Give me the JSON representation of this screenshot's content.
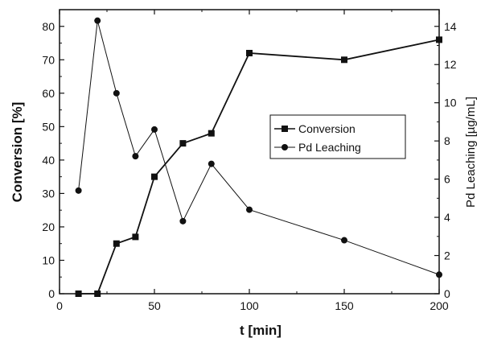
{
  "chart_data": {
    "type": "line",
    "xlabel": "t [min]",
    "ylabel_left": "Conversion [%]",
    "ylabel_right": "Pd Leaching [µg/mL]",
    "xlim": [
      0,
      200
    ],
    "ylim_left": [
      0,
      85
    ],
    "ylim_right": [
      0,
      14.875
    ],
    "x_ticks": [
      0,
      50,
      100,
      150,
      200
    ],
    "y_left_ticks": [
      0,
      10,
      20,
      30,
      40,
      50,
      60,
      70,
      80
    ],
    "y_right_ticks": [
      0,
      2,
      4,
      6,
      8,
      10,
      12,
      14
    ],
    "grid": false,
    "legend_position": "center-right",
    "series": [
      {
        "name": "Conversion",
        "axis": "left",
        "marker": "square",
        "x": [
          10,
          20,
          30,
          40,
          50,
          65,
          80,
          100,
          150,
          200
        ],
        "y": [
          0,
          0,
          15,
          17,
          35,
          45,
          48,
          72,
          70,
          76
        ]
      },
      {
        "name": "Pd Leaching",
        "axis": "right",
        "marker": "circle",
        "x": [
          10,
          20,
          30,
          40,
          50,
          65,
          80,
          100,
          150,
          200
        ],
        "y": [
          5.4,
          14.3,
          10.5,
          7.2,
          8.6,
          3.8,
          6.8,
          4.4,
          2.8,
          1.0
        ]
      }
    ]
  },
  "colors": {
    "line": "#111111",
    "background": "#ffffff"
  }
}
